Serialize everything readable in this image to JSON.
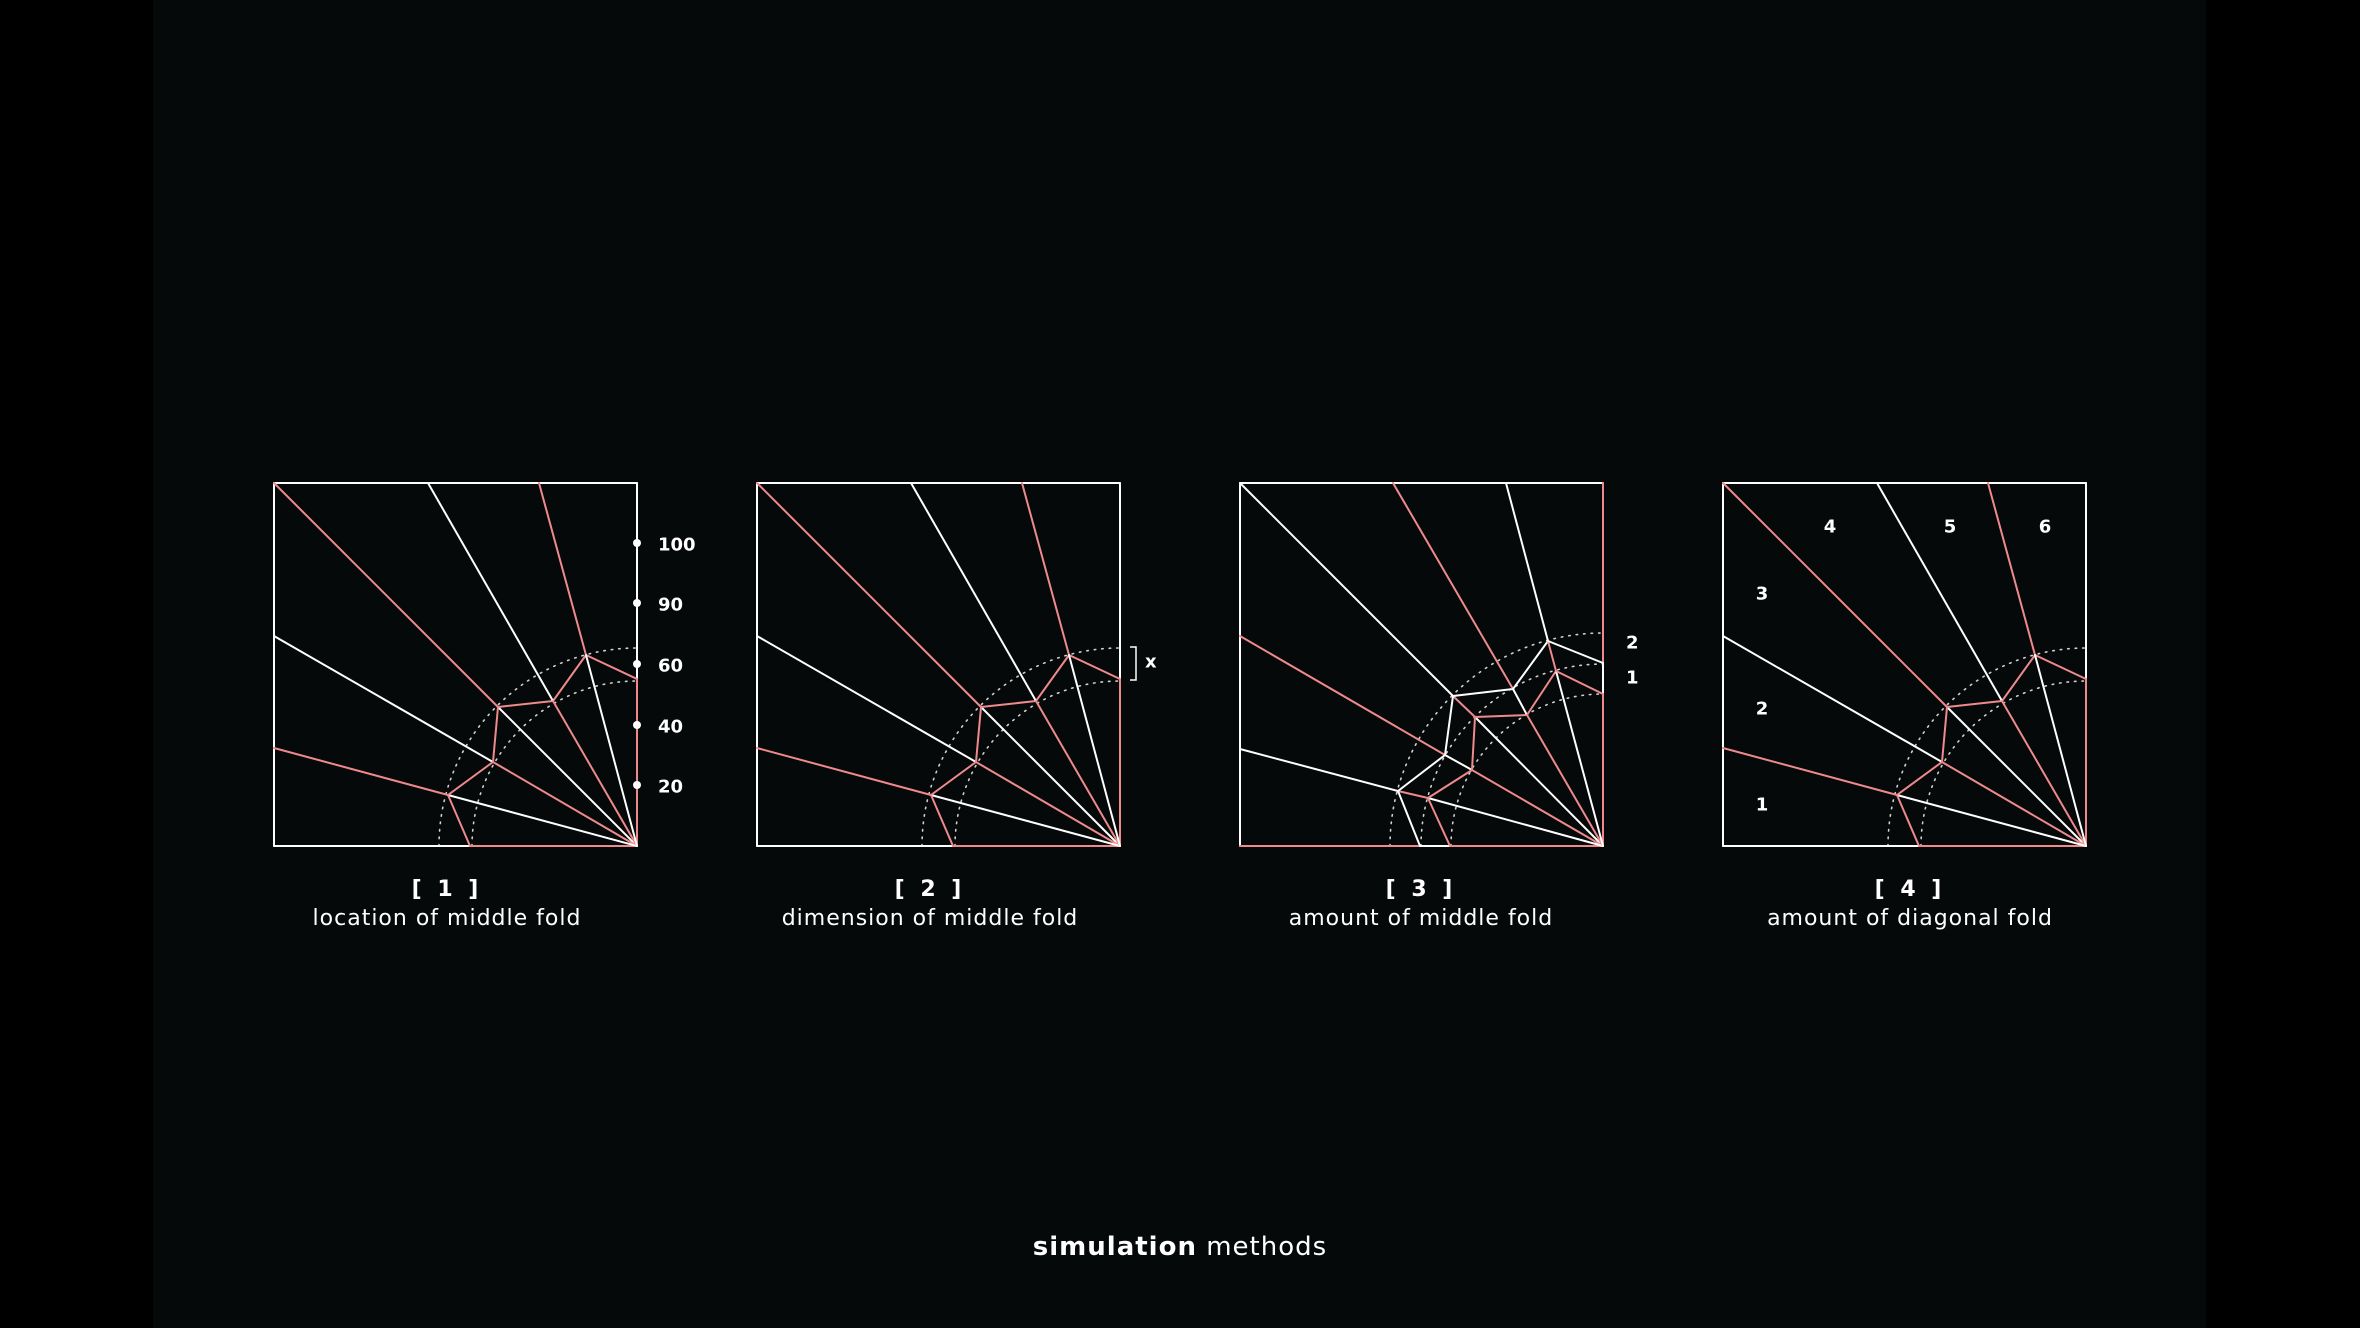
{
  "colors": {
    "background": "#05090a",
    "outer": "#000000",
    "mountain_fold": "#ffffff",
    "valley_fold": "#ef8a8c"
  },
  "panels": [
    {
      "number": "[ 1 ]",
      "caption": "location of middle fold",
      "scale_labels": [
        "100",
        "90",
        "60",
        "40",
        "20"
      ]
    },
    {
      "number": "[ 2 ]",
      "caption": "dimension of middle fold",
      "dimension_label": "x"
    },
    {
      "number": "[ 3 ]",
      "caption": "amount of middle fold",
      "fold_labels": [
        "2",
        "1"
      ]
    },
    {
      "number": "[ 4 ]",
      "caption": "amount of diagonal fold",
      "sector_labels": [
        "1",
        "2",
        "3",
        "4",
        "5",
        "6"
      ]
    }
  ],
  "footer": {
    "bold": "simulation",
    "regular": "methods"
  }
}
